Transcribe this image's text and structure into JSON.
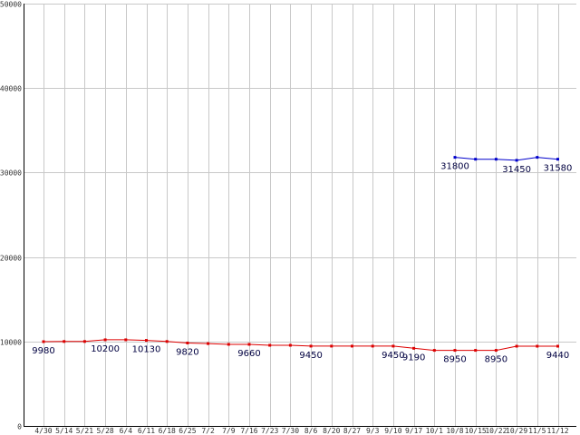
{
  "chart_data": {
    "type": "line",
    "categories": [
      "4/30",
      "5/14",
      "5/21",
      "5/28",
      "6/4",
      "6/11",
      "6/18",
      "6/25",
      "7/2",
      "7/9",
      "7/16",
      "7/23",
      "7/30",
      "8/6",
      "8/20",
      "8/27",
      "9/3",
      "9/10",
      "9/17",
      "10/1",
      "10/8",
      "10/15",
      "10/22",
      "10/29",
      "11/5",
      "11/12"
    ],
    "ylim": [
      0,
      50000
    ],
    "yticks": [
      0,
      10000,
      20000,
      30000,
      40000,
      50000
    ],
    "grid": true,
    "series": [
      {
        "color": "#dd0000",
        "values": [
          9980,
          10000,
          10000,
          10200,
          10200,
          10130,
          10000,
          9820,
          9750,
          9660,
          9660,
          9550,
          9550,
          9450,
          9450,
          9450,
          9450,
          9450,
          9190,
          8950,
          8950,
          8950,
          8950,
          9440,
          9440,
          9440
        ]
      },
      {
        "color": "#0000cc",
        "values": [
          null,
          null,
          null,
          null,
          null,
          null,
          null,
          null,
          null,
          null,
          null,
          null,
          null,
          null,
          null,
          null,
          null,
          null,
          null,
          null,
          31800,
          31580,
          31580,
          31450,
          31800,
          31580
        ]
      }
    ],
    "data_labels": [
      {
        "series": 0,
        "index": 0,
        "text": "9980"
      },
      {
        "series": 0,
        "index": 3,
        "text": "10200"
      },
      {
        "series": 0,
        "index": 5,
        "text": "10130"
      },
      {
        "series": 0,
        "index": 7,
        "text": "9820"
      },
      {
        "series": 0,
        "index": 10,
        "text": "9660"
      },
      {
        "series": 0,
        "index": 13,
        "text": "9450"
      },
      {
        "series": 0,
        "index": 17,
        "text": "9450"
      },
      {
        "series": 0,
        "index": 18,
        "text": "9190"
      },
      {
        "series": 0,
        "index": 20,
        "text": "8950"
      },
      {
        "series": 0,
        "index": 22,
        "text": "8950"
      },
      {
        "series": 0,
        "index": 25,
        "text": "9440"
      },
      {
        "series": 1,
        "index": 20,
        "text": "31800"
      },
      {
        "series": 1,
        "index": 23,
        "text": "31450"
      },
      {
        "series": 1,
        "index": 25,
        "text": "31580"
      }
    ]
  }
}
